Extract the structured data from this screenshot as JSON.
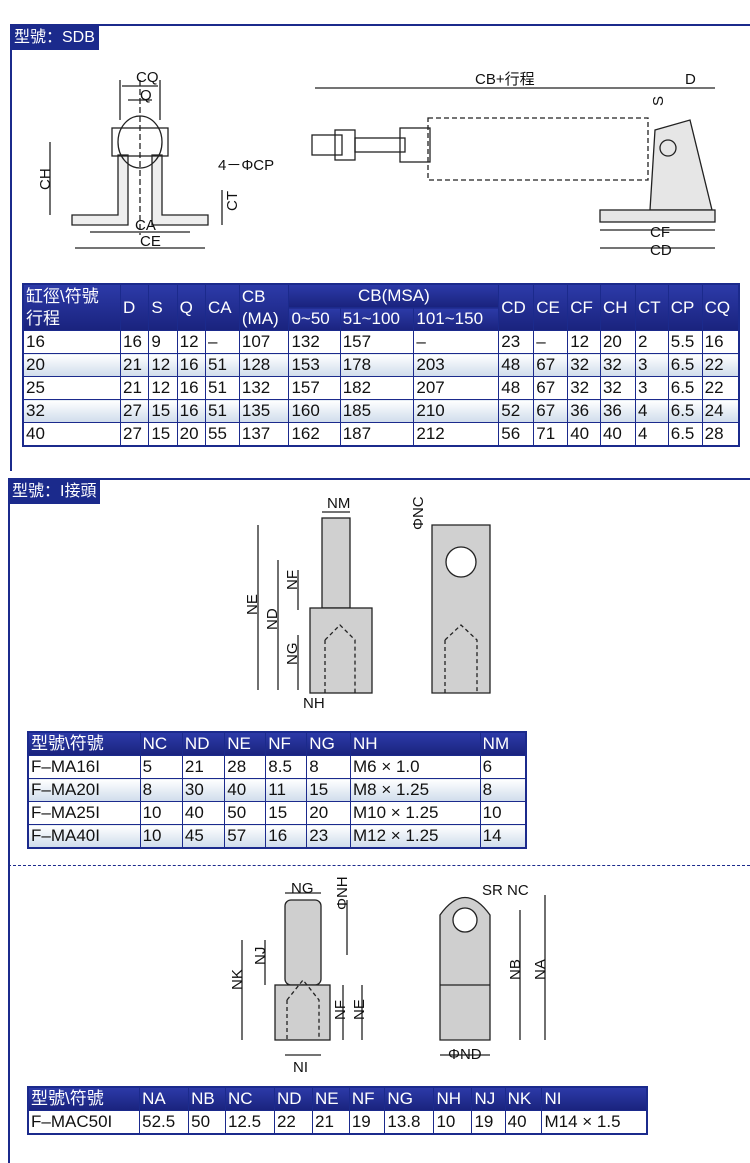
{
  "sections": [
    {
      "title": "型號：SDB"
    },
    {
      "title": "型號：I接頭"
    }
  ],
  "sdb": {
    "labels": {
      "cq": "CQ",
      "q": "Q",
      "ch": "CH",
      "cp": "4－ΦCP",
      "ct": "CT",
      "ca": "CA",
      "ce": "CE",
      "cb": "CB+行程",
      "d": "D",
      "s": "S",
      "cf": "CF",
      "cd": "CD"
    },
    "table": {
      "header_top": [
        "缸徑\\符號",
        "D",
        "S",
        "Q",
        "CA",
        "CB",
        "CB(MSA)",
        "CD",
        "CE",
        "CF",
        "CH",
        "CT",
        "CP",
        "CQ"
      ],
      "header_row1_second": "行程",
      "cb_sub": "(MA)",
      "msa_sub": [
        "0~50",
        "51~100",
        "101~150"
      ],
      "rows": [
        [
          "16",
          "16",
          "9",
          "12",
          "–",
          "107",
          "132",
          "157",
          "–",
          "23",
          "–",
          "12",
          "20",
          "2",
          "5.5",
          "16"
        ],
        [
          "20",
          "21",
          "12",
          "16",
          "51",
          "128",
          "153",
          "178",
          "203",
          "48",
          "67",
          "32",
          "32",
          "3",
          "6.5",
          "22"
        ],
        [
          "25",
          "21",
          "12",
          "16",
          "51",
          "132",
          "157",
          "182",
          "207",
          "48",
          "67",
          "32",
          "32",
          "3",
          "6.5",
          "22"
        ],
        [
          "32",
          "27",
          "15",
          "16",
          "51",
          "135",
          "160",
          "185",
          "210",
          "52",
          "67",
          "36",
          "36",
          "4",
          "6.5",
          "24"
        ],
        [
          "40",
          "27",
          "15",
          "20",
          "55",
          "137",
          "162",
          "187",
          "212",
          "56",
          "71",
          "40",
          "40",
          "4",
          "6.5",
          "28"
        ]
      ]
    }
  },
  "i_joint": {
    "labels": {
      "nm": "NM",
      "ne": "NE",
      "nf": "NF",
      "nd": "ND",
      "ng": "NG",
      "nh": "NH",
      "nc": "ΦNC"
    },
    "table": {
      "headers": [
        "型號\\符號",
        "NC",
        "ND",
        "NE",
        "NF",
        "NG",
        "NH",
        "NM"
      ],
      "rows": [
        [
          "F–MA16I",
          "5",
          "21",
          "28",
          "8.5",
          "8",
          "M6 × 1.0",
          "6"
        ],
        [
          "F–MA20I",
          "8",
          "30",
          "40",
          "11",
          "15",
          "M8 × 1.25",
          "8"
        ],
        [
          "F–MA25I",
          "10",
          "40",
          "50",
          "15",
          "20",
          "M10 × 1.25",
          "10"
        ],
        [
          "F–MA40I",
          "10",
          "45",
          "57",
          "16",
          "23",
          "M12 × 1.25",
          "14"
        ]
      ]
    }
  },
  "mac": {
    "labels": {
      "ng": "NG",
      "nh": "ΦNH",
      "nj": "NJ",
      "nk": "NK",
      "nf": "NF",
      "ne": "NE",
      "ni": "NI",
      "srnc": "SR NC",
      "nb": "NB",
      "na": "NA",
      "nd": "ΦND"
    },
    "table": {
      "headers": [
        "型號\\符號",
        "NA",
        "NB",
        "NC",
        "ND",
        "NE",
        "NF",
        "NG",
        "NH",
        "NJ",
        "NK",
        "NI"
      ],
      "rows": [
        [
          "F–MAC50I",
          "52.5",
          "50",
          "12.5",
          "22",
          "21",
          "19",
          "13.8",
          "10",
          "19",
          "40",
          "M14 × 1.5"
        ]
      ]
    }
  }
}
